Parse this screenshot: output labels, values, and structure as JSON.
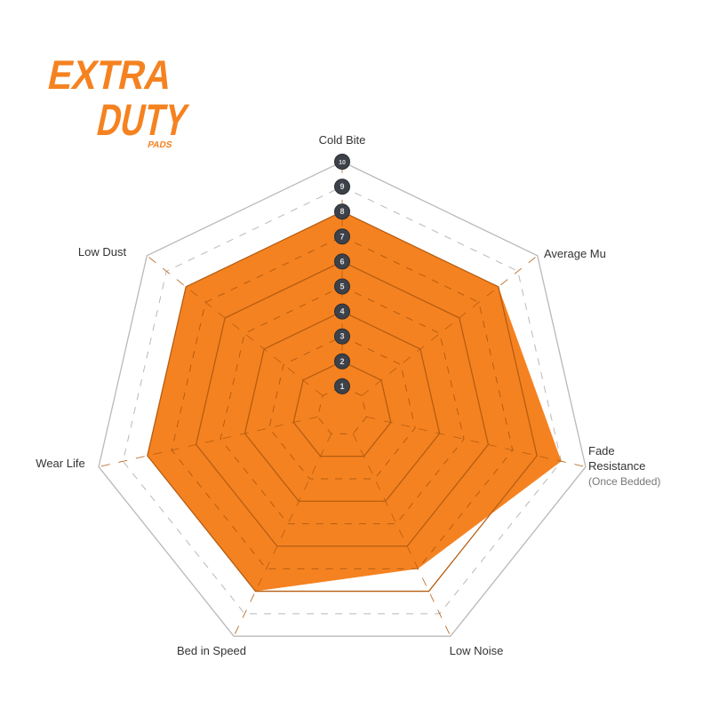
{
  "logo": {
    "line1": "EXTRA",
    "line2": "DUTY",
    "line3": "PADS",
    "color": "#f58220"
  },
  "chart_data": {
    "type": "radar",
    "title": "",
    "axes": [
      "Cold Bite",
      "Average Mu",
      "Fade Resistance",
      "Low Noise",
      "Bed in Speed",
      "Wear Life",
      "Low Dust"
    ],
    "axis_sublabels": {
      "Fade Resistance": "(Once Bedded)"
    },
    "scale_ticks": [
      1,
      2,
      3,
      4,
      5,
      6,
      7,
      8,
      9,
      10
    ],
    "range": [
      0,
      10
    ],
    "series": [
      {
        "values": [
          8,
          8,
          9,
          7,
          8,
          8,
          8
        ],
        "color": "#f58220"
      }
    ]
  }
}
